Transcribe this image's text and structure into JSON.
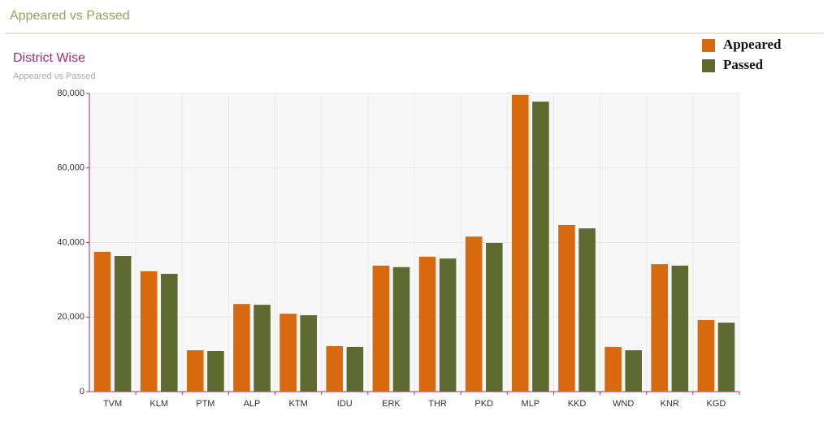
{
  "header": {
    "title": "Appeared vs Passed"
  },
  "chart_data": {
    "type": "bar",
    "title": "District Wise",
    "subtitle": "Appeared vs Passed",
    "categories": [
      "TVM",
      "KLM",
      "PTM",
      "ALP",
      "KTM",
      "IDU",
      "ERK",
      "THR",
      "PKD",
      "MLP",
      "KKD",
      "WND",
      "KNR",
      "KGD"
    ],
    "series": [
      {
        "name": "Appeared",
        "color": "#d9690f",
        "values": [
          37500,
          32300,
          11100,
          23500,
          20900,
          12200,
          33800,
          36200,
          41600,
          79600,
          44700,
          12000,
          34200,
          19200
        ]
      },
      {
        "name": "Passed",
        "color": "#5e6a2f",
        "values": [
          36400,
          31600,
          10900,
          23300,
          20500,
          12000,
          33400,
          35700,
          39900,
          77800,
          43800,
          11100,
          33800,
          18500
        ]
      }
    ],
    "ylim": [
      0,
      80000
    ],
    "yticks": [
      0,
      {
        "value": 20000,
        "label": "20,000"
      },
      {
        "value": 40000,
        "label": "40,000"
      },
      {
        "value": 60000,
        "label": "60,000"
      },
      {
        "value": 80000,
        "label": "80,000"
      }
    ],
    "grid": true,
    "legend": "top-right"
  }
}
